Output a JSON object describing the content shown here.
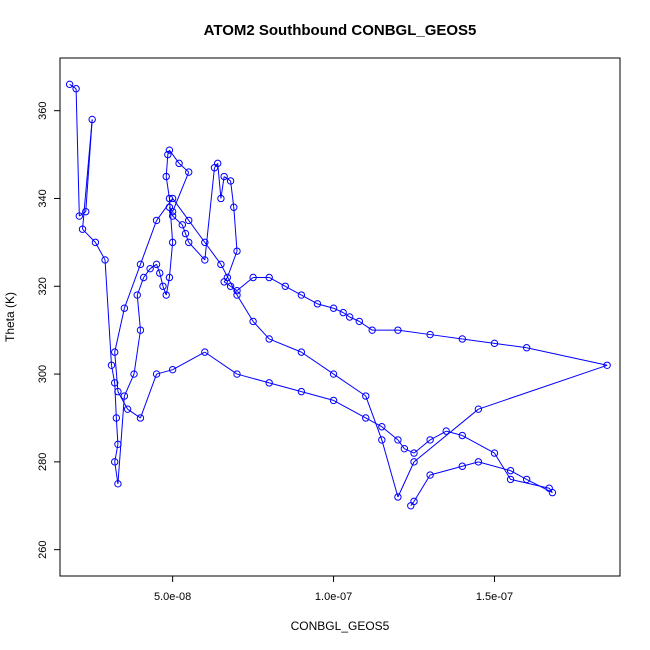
{
  "chart_data": {
    "type": "scatter",
    "title": "ATOM2 Southbound CONBGL_GEOS5",
    "xlabel": "CONBGL_GEOS5",
    "ylabel": "Theta (K)",
    "xlim": [
      1.5e-08,
      1.89e-07
    ],
    "ylim": [
      254,
      372
    ],
    "x_ticks": [
      5e-08,
      1e-07,
      1.5e-07
    ],
    "x_tick_labels": [
      "5.0e-08",
      "1.0e-07",
      "1.5e-07"
    ],
    "y_ticks": [
      260,
      280,
      300,
      320,
      340,
      360
    ],
    "y_tick_labels": [
      "260",
      "280",
      "300",
      "320",
      "340",
      "360"
    ],
    "series_color": "#0000ff",
    "connected": true,
    "x": [
      1.8e-08,
      2e-08,
      2.1e-08,
      2.3e-08,
      2.5e-08,
      2.2e-08,
      2.6e-08,
      2.9e-08,
      3.1e-08,
      3.2e-08,
      3.25e-08,
      3.3e-08,
      3.2e-08,
      3.3e-08,
      3.5e-08,
      3.8e-08,
      4e-08,
      3.9e-08,
      4.1e-08,
      4.3e-08,
      4.5e-08,
      4.6e-08,
      4.7e-08,
      4.8e-08,
      4.9e-08,
      5e-08,
      4.9e-08,
      4.8e-08,
      4.85e-08,
      4.9e-08,
      5.2e-08,
      5.5e-08,
      5e-08,
      4.9e-08,
      5e-08,
      5.3e-08,
      5.4e-08,
      5.5e-08,
      6e-08,
      6.3e-08,
      6.4e-08,
      6.5e-08,
      6.6e-08,
      6.8e-08,
      6.9e-08,
      7e-08,
      6.7e-08,
      6.6e-08,
      6.8e-08,
      7e-08,
      7.5e-08,
      8e-08,
      8.5e-08,
      9e-08,
      9.5e-08,
      1e-07,
      1.03e-07,
      1.05e-07,
      1.08e-07,
      1.12e-07,
      1.2e-07,
      1.3e-07,
      1.4e-07,
      1.5e-07,
      1.6e-07,
      1.85e-07,
      1.45e-07,
      1.25e-07,
      1.2e-07,
      1.15e-07,
      1.1e-07,
      1e-07,
      9e-08,
      8e-08,
      7.5e-08,
      7e-08,
      6.5e-08,
      6e-08,
      5.5e-08,
      5e-08,
      4.5e-08,
      4e-08,
      3.5e-08,
      3.2e-08,
      3.3e-08,
      3.6e-08,
      4e-08,
      4.5e-08,
      5e-08,
      6e-08,
      7e-08,
      8e-08,
      9e-08,
      1e-07,
      1.1e-07,
      1.15e-07,
      1.2e-07,
      1.22e-07,
      1.25e-07,
      1.3e-07,
      1.35e-07,
      1.4e-07,
      1.5e-07,
      1.55e-07,
      1.67e-07,
      1.68e-07,
      1.6e-07,
      1.55e-07,
      1.45e-07,
      1.4e-07,
      1.3e-07,
      1.25e-07,
      1.24e-07
    ],
    "y": [
      366,
      365,
      336,
      337,
      358,
      333,
      330,
      326,
      302,
      298,
      290,
      284,
      280,
      275,
      295,
      300,
      310,
      318,
      322,
      324,
      325,
      323,
      320,
      318,
      322,
      330,
      340,
      345,
      350,
      351,
      348,
      346,
      337,
      338,
      336,
      334,
      332,
      330,
      326,
      347,
      348,
      340,
      345,
      344,
      338,
      328,
      322,
      321,
      320,
      319,
      322,
      322,
      320,
      318,
      316,
      315,
      314,
      313,
      312,
      310,
      310,
      309,
      308,
      307,
      306,
      302,
      292,
      280,
      272,
      285,
      295,
      300,
      305,
      308,
      312,
      318,
      325,
      330,
      335,
      340,
      335,
      325,
      315,
      305,
      296,
      292,
      290,
      300,
      301,
      305,
      300,
      298,
      296,
      294,
      290,
      288,
      285,
      283,
      282,
      285,
      287,
      286,
      282,
      276,
      274,
      273,
      276,
      278,
      280,
      279,
      277,
      271,
      270
    ]
  }
}
